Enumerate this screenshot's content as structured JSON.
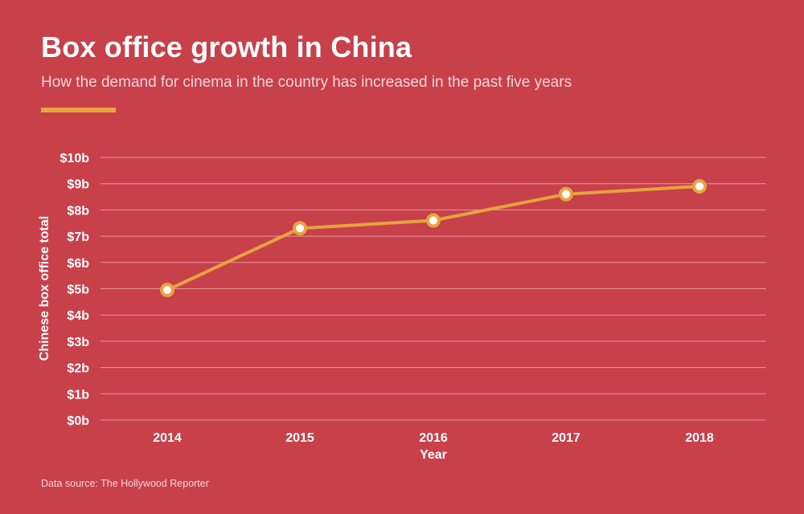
{
  "header": {
    "title": "Box office growth in China",
    "subtitle": "How the demand for cinema in the country has increased in the past five years"
  },
  "footer": {
    "source": "Data source: The Hollywood Reporter"
  },
  "colors": {
    "background": "#c8404a",
    "line": "#e6a33e",
    "grid": "#e59aa0",
    "marker_fill": "#ffffff"
  },
  "chart_data": {
    "type": "line",
    "title": "Box office growth in China",
    "subtitle": "How the demand for cinema in the country has increased in the past five years",
    "xlabel": "Year",
    "ylabel": "Chinese box office total",
    "categories": [
      "2014",
      "2015",
      "2016",
      "2017",
      "2018"
    ],
    "series": [
      {
        "values": [
          4.95,
          7.3,
          7.6,
          8.6,
          8.9
        ]
      }
    ],
    "ylim": [
      0,
      10
    ],
    "yticks": [
      0,
      1,
      2,
      3,
      4,
      5,
      6,
      7,
      8,
      9,
      10
    ],
    "ytick_labels": [
      "$0b",
      "$1b",
      "$2b",
      "$3b",
      "$4b",
      "$5b",
      "$6b",
      "$7b",
      "$8b",
      "$9b",
      "$10b"
    ],
    "grid": true,
    "legend": "none"
  }
}
